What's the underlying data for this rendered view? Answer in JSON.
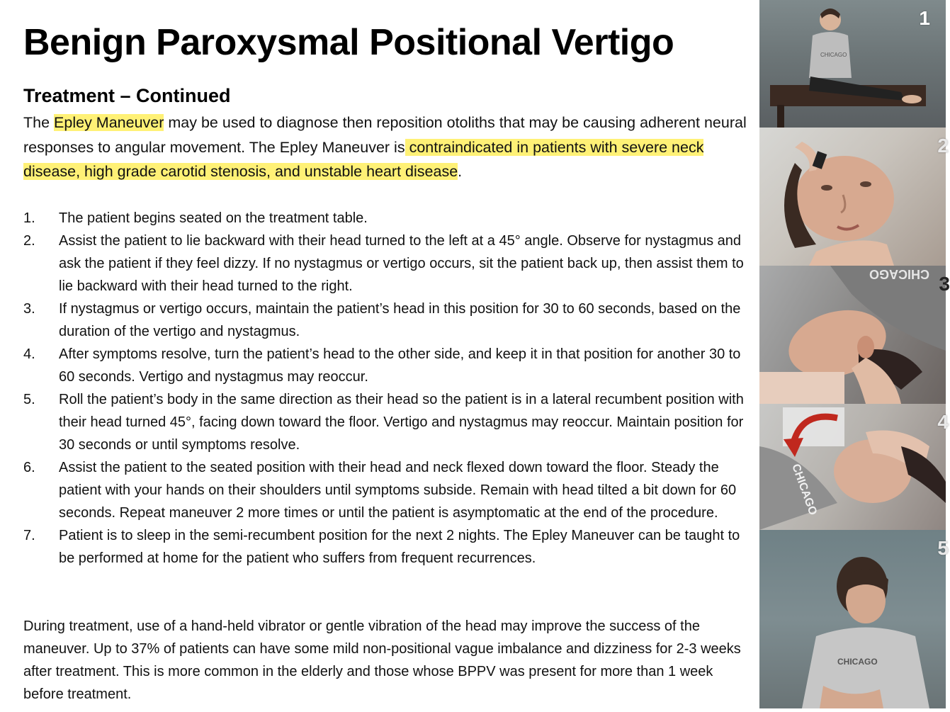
{
  "title": "Benign Paroxysmal Positional Vertigo",
  "subtitle": "Treatment – Continued",
  "intro": {
    "part1": "The ",
    "highlight1": "Epley Maneuver",
    "part2": " may be used to diagnose then reposition otoliths that may be causing adherent neural responses to angular movement. The Epley Maneuver is",
    "highlight2": " contraindicated in patients with severe neck disease, high grade carotid stenosis, and unstable heart disease",
    "part3": "."
  },
  "steps": [
    {
      "num": "1.",
      "text": "The patient begins seated on the treatment table."
    },
    {
      "num": "2.",
      "text": "Assist the patient to lie backward with their head turned to the left at a 45° angle. Observe for nystagmus and ask the patient if they feel dizzy. If no nystagmus or vertigo occurs, sit the patient back up, then assist them to lie backward with their head turned to the right."
    },
    {
      "num": "3.",
      "text": "If nystagmus or vertigo occurs, maintain the patient’s head in this position for 30 to 60 seconds, based on the duration of the vertigo and nystagmus."
    },
    {
      "num": "4.",
      "text": "After symptoms resolve, turn the patient’s head to the other side, and keep it in that position for another 30 to 60 seconds. Vertigo and nystagmus may reoccur."
    },
    {
      "num": "5.",
      "text": "Roll the patient’s body in the same direction as their head so the patient is in a lateral recumbent position with their head turned 45°, facing down toward the floor. Vertigo and nystagmus may reoccur. Maintain position for 30 seconds or until symptoms resolve."
    },
    {
      "num": "6.",
      "text": "Assist the patient to the seated position with their head and neck flexed down toward the floor. Steady the patient with your hands on their shoulders until symptoms subside. Remain with head tilted a bit down for 60 seconds. Repeat maneuver 2 more times or until the patient is asymptomatic at the end of the procedure."
    },
    {
      "num": "7.",
      "text": "Patient is to sleep in the semi-recumbent position for the next 2 nights. The Epley Maneuver can be taught to be performed at home for the patient who suffers from frequent recurrences."
    }
  ],
  "closing": "During treatment, use of a hand-held vibrator or gentle vibration of the head may improve the success of the maneuver. Up to 37% of patients can have some mild non-positional vague imbalance and dizziness for 2-3 weeks after treatment. This is more common in the elderly and those whose BPPV was present for more than 1 week before treatment.",
  "photos": [
    {
      "label": "1",
      "shirt_text": "CHICAGO"
    },
    {
      "label": "2"
    },
    {
      "label": "3",
      "shirt_text": "CHICAGO"
    },
    {
      "label": "4",
      "shirt_text": "CHICAGO"
    },
    {
      "label": "5",
      "shirt_text": "CHICAGO"
    }
  ],
  "colors": {
    "highlight": "#fff176",
    "arrow": "#c0281e"
  }
}
